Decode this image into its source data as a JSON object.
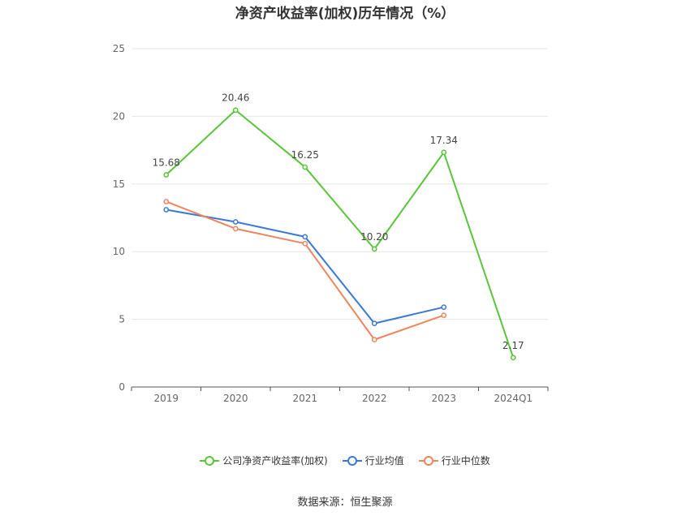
{
  "chart_data": {
    "type": "line",
    "title": "净资产收益率(加权)历年情况（%）",
    "categories": [
      "2019",
      "2020",
      "2021",
      "2022",
      "2023",
      "2024Q1"
    ],
    "ylim": [
      0,
      25
    ],
    "yticks": [
      0,
      5,
      10,
      15,
      20,
      25
    ],
    "grid": true,
    "legend_position": "bottom",
    "series": [
      {
        "name": "公司净资产收益率(加权)",
        "color": "#5ac53a",
        "values": [
          15.68,
          20.46,
          16.25,
          10.2,
          17.34,
          2.17
        ],
        "labels": [
          "15.68",
          "20.46",
          "16.25",
          "10.20",
          "17.34",
          "2.17"
        ]
      },
      {
        "name": "行业均值",
        "color": "#3b78d8",
        "values": [
          13.1,
          12.2,
          11.1,
          4.7,
          5.9,
          null
        ],
        "labels": null
      },
      {
        "name": "行业中位数",
        "color": "#f0845c",
        "values": [
          13.7,
          11.7,
          10.6,
          3.5,
          5.3,
          null
        ],
        "labels": null
      }
    ]
  },
  "source": "数据来源：恒生聚源"
}
